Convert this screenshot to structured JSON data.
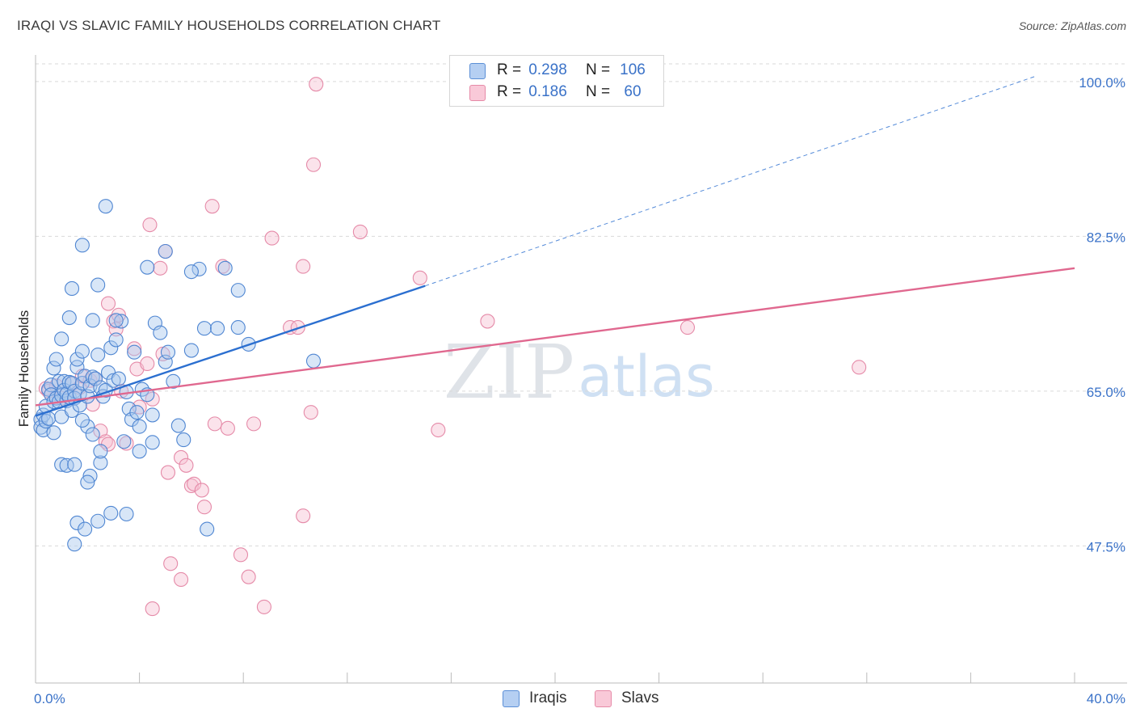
{
  "title": "IRAQI VS SLAVIC FAMILY HOUSEHOLDS CORRELATION CHART",
  "source": "Source: ZipAtlas.com",
  "watermark": {
    "zip": "ZIP",
    "atlas": "atlas"
  },
  "legend_top": {
    "rows": [
      {
        "r_label": "R =",
        "r_value": "0.298",
        "n_label": "N =",
        "n_value": "106",
        "swatch_color": "#b5cff2",
        "swatch_border": "#5b8fd6"
      },
      {
        "r_label": "R =",
        "r_value": "0.186",
        "n_label": "N =",
        "n_value": "60",
        "swatch_color": "#f9c9d8",
        "swatch_border": "#e68aa7"
      }
    ]
  },
  "legend_bottom": [
    {
      "label": "Iraqis",
      "swatch_color": "#b5cff2",
      "swatch_border": "#5b8fd6"
    },
    {
      "label": "Slavs",
      "swatch_color": "#f9c9d8",
      "swatch_border": "#e68aa7"
    }
  ],
  "colors": {
    "iraqis_fill": "#a9c7ee",
    "iraqis_stroke": "#4f86d2",
    "iraqis_line": "#2b6fd0",
    "slavs_fill": "#f7c0d2",
    "slavs_stroke": "#e58aa8",
    "slavs_line": "#e0688f",
    "axis_text": "#3a72c8",
    "grid": "#d9d9d9",
    "axis": "#bbbbbb"
  },
  "chart_data": {
    "type": "scatter",
    "title": "IRAQI VS SLAVIC FAMILY HOUSEHOLDS CORRELATION CHART",
    "xlabel": "",
    "ylabel": "Family Households",
    "xlim": [
      0,
      40
    ],
    "ylim": [
      32,
      102
    ],
    "x_tick_labels": [
      "0.0%",
      "40.0%"
    ],
    "y_ticks": [
      47.5,
      65.0,
      82.5,
      100.0
    ],
    "y_tick_labels": [
      "47.5%",
      "65.0%",
      "82.5%",
      "100.0%"
    ],
    "grid": true,
    "series": [
      {
        "name": "Iraqis",
        "R": 0.298,
        "N": 106,
        "trend": {
          "x0": 0,
          "y0": 62.2,
          "x1": 15.0,
          "y1": 76.9,
          "dashed_to_x": 38.5,
          "dashed_to_y": 100.6
        },
        "points": [
          [
            0.2,
            61.8
          ],
          [
            0.2,
            60.9
          ],
          [
            0.3,
            62.3
          ],
          [
            0.3,
            60.6
          ],
          [
            0.4,
            61.6
          ],
          [
            0.4,
            63.3
          ],
          [
            0.5,
            61.9
          ],
          [
            0.5,
            65.2
          ],
          [
            0.6,
            65.7
          ],
          [
            0.6,
            64.6
          ],
          [
            0.7,
            63.8
          ],
          [
            0.7,
            67.6
          ],
          [
            0.8,
            68.6
          ],
          [
            0.8,
            64.2
          ],
          [
            0.9,
            66.1
          ],
          [
            0.9,
            63.8
          ],
          [
            1.0,
            64.5
          ],
          [
            1.0,
            62.1
          ],
          [
            1.1,
            66.1
          ],
          [
            1.1,
            65.1
          ],
          [
            1.2,
            63.9
          ],
          [
            1.2,
            64.7
          ],
          [
            1.3,
            66.0
          ],
          [
            1.3,
            64.3
          ],
          [
            1.4,
            65.9
          ],
          [
            1.4,
            62.8
          ],
          [
            1.5,
            65.0
          ],
          [
            1.5,
            64.2
          ],
          [
            1.6,
            67.7
          ],
          [
            1.6,
            68.6
          ],
          [
            1.7,
            63.4
          ],
          [
            1.7,
            64.7
          ],
          [
            1.8,
            69.5
          ],
          [
            1.8,
            65.9
          ],
          [
            1.9,
            66.7
          ],
          [
            2.0,
            61.0
          ],
          [
            2.0,
            64.4
          ],
          [
            2.1,
            65.6
          ],
          [
            2.2,
            60.1
          ],
          [
            2.2,
            66.6
          ],
          [
            2.3,
            66.4
          ],
          [
            2.4,
            69.1
          ],
          [
            2.5,
            65.4
          ],
          [
            2.6,
            64.4
          ],
          [
            2.7,
            65.1
          ],
          [
            2.8,
            67.1
          ],
          [
            2.9,
            69.9
          ],
          [
            3.0,
            66.2
          ],
          [
            3.1,
            70.8
          ],
          [
            3.2,
            66.4
          ],
          [
            3.3,
            72.9
          ],
          [
            3.4,
            59.3
          ],
          [
            3.5,
            64.9
          ],
          [
            3.6,
            63.0
          ],
          [
            3.7,
            61.8
          ],
          [
            3.8,
            69.4
          ],
          [
            3.9,
            62.6
          ],
          [
            4.0,
            61.0
          ],
          [
            4.1,
            65.2
          ],
          [
            4.3,
            64.6
          ],
          [
            4.5,
            62.3
          ],
          [
            4.6,
            72.7
          ],
          [
            4.8,
            71.6
          ],
          [
            5.0,
            68.3
          ],
          [
            5.1,
            69.4
          ],
          [
            5.3,
            66.1
          ],
          [
            5.5,
            61.1
          ],
          [
            5.7,
            59.5
          ],
          [
            6.0,
            69.6
          ],
          [
            6.3,
            78.8
          ],
          [
            6.5,
            72.1
          ],
          [
            7.0,
            72.1
          ],
          [
            7.3,
            78.9
          ],
          [
            7.8,
            76.4
          ],
          [
            8.2,
            70.3
          ],
          [
            1.0,
            56.7
          ],
          [
            1.2,
            56.6
          ],
          [
            1.5,
            56.7
          ],
          [
            1.6,
            50.1
          ],
          [
            1.9,
            49.4
          ],
          [
            1.5,
            47.7
          ],
          [
            2.1,
            55.4
          ],
          [
            2.0,
            54.7
          ],
          [
            2.4,
            50.3
          ],
          [
            2.5,
            56.9
          ],
          [
            2.5,
            58.2
          ],
          [
            2.9,
            51.2
          ],
          [
            3.5,
            51.1
          ],
          [
            4.0,
            58.2
          ],
          [
            4.5,
            59.2
          ],
          [
            6.6,
            49.4
          ],
          [
            7.8,
            72.2
          ],
          [
            0.7,
            60.3
          ],
          [
            1.0,
            70.9
          ],
          [
            1.3,
            73.3
          ],
          [
            1.4,
            76.6
          ],
          [
            1.8,
            81.5
          ],
          [
            2.2,
            73.0
          ],
          [
            2.4,
            77.0
          ],
          [
            3.1,
            73.0
          ],
          [
            2.7,
            85.9
          ],
          [
            4.3,
            79.0
          ],
          [
            5.0,
            80.8
          ],
          [
            6.0,
            78.5
          ],
          [
            10.7,
            68.4
          ],
          [
            1.8,
            61.7
          ]
        ]
      },
      {
        "name": "Slavs",
        "R": 0.186,
        "N": 60,
        "trend": {
          "x0": 0,
          "y0": 63.4,
          "x1": 40,
          "y1": 78.9
        },
        "points": [
          [
            0.4,
            65.3
          ],
          [
            0.5,
            65.0
          ],
          [
            0.8,
            65.6
          ],
          [
            1.0,
            64.2
          ],
          [
            1.4,
            65.8
          ],
          [
            1.7,
            65.4
          ],
          [
            1.8,
            66.7
          ],
          [
            2.1,
            66.2
          ],
          [
            2.2,
            63.5
          ],
          [
            2.3,
            66.4
          ],
          [
            2.5,
            60.5
          ],
          [
            2.7,
            59.3
          ],
          [
            2.8,
            59.0
          ],
          [
            2.8,
            74.9
          ],
          [
            3.0,
            72.9
          ],
          [
            3.1,
            72.0
          ],
          [
            3.2,
            73.6
          ],
          [
            3.3,
            65.0
          ],
          [
            3.5,
            59.1
          ],
          [
            3.8,
            69.8
          ],
          [
            3.9,
            67.5
          ],
          [
            4.0,
            63.2
          ],
          [
            4.3,
            68.1
          ],
          [
            4.4,
            83.8
          ],
          [
            4.5,
            64.1
          ],
          [
            4.8,
            78.9
          ],
          [
            4.9,
            69.2
          ],
          [
            5.0,
            80.8
          ],
          [
            5.1,
            55.8
          ],
          [
            5.6,
            57.5
          ],
          [
            5.8,
            56.6
          ],
          [
            6.0,
            54.3
          ],
          [
            6.1,
            54.5
          ],
          [
            6.4,
            53.8
          ],
          [
            6.5,
            51.9
          ],
          [
            6.8,
            85.9
          ],
          [
            6.9,
            61.3
          ],
          [
            7.2,
            79.1
          ],
          [
            7.4,
            60.8
          ],
          [
            7.9,
            46.5
          ],
          [
            8.2,
            44.0
          ],
          [
            8.4,
            61.3
          ],
          [
            9.1,
            82.3
          ],
          [
            9.8,
            72.2
          ],
          [
            10.1,
            72.2
          ],
          [
            10.3,
            79.1
          ],
          [
            10.3,
            50.9
          ],
          [
            10.6,
            62.6
          ],
          [
            10.7,
            90.6
          ],
          [
            10.8,
            99.7
          ],
          [
            12.5,
            83.0
          ],
          [
            14.8,
            77.8
          ],
          [
            15.5,
            60.6
          ],
          [
            17.4,
            72.9
          ],
          [
            25.1,
            72.2
          ],
          [
            31.7,
            67.7
          ],
          [
            5.2,
            45.5
          ],
          [
            5.6,
            43.7
          ],
          [
            4.5,
            40.4
          ],
          [
            8.8,
            40.6
          ]
        ]
      }
    ]
  }
}
